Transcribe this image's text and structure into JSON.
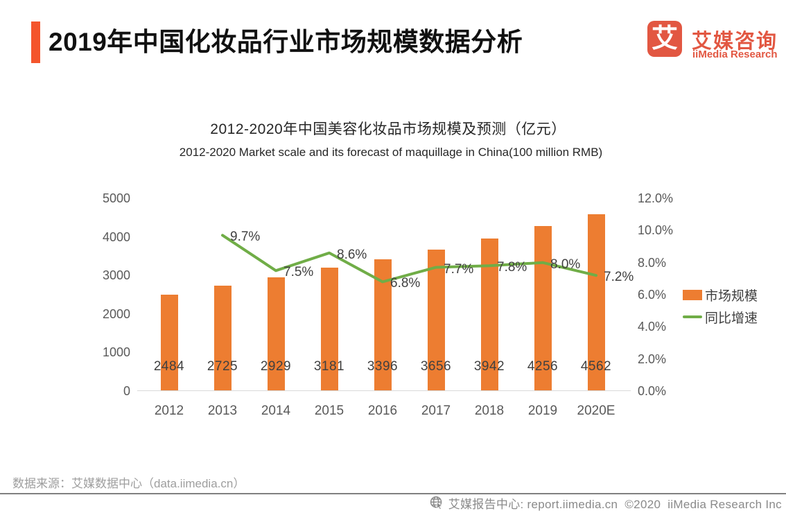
{
  "header": {
    "title": "2019年中国化妆品行业市场规模数据分析",
    "logo": {
      "mark_glyph": "艾",
      "name_cn": "艾媒咨询",
      "name_en": "iiMedia Research",
      "brand_color": "#e25742"
    }
  },
  "chart": {
    "title": "2012-2020年中国美容化妆品市场规模及预测（亿元）",
    "subtitle": "2012-2020 Market scale and its forecast of maquillage in China(100 million RMB)",
    "legend": [
      {
        "label": "市场规模",
        "type": "bar",
        "color": "#ED7D31"
      },
      {
        "label": "同比增速",
        "type": "line",
        "color": "#70AD47"
      }
    ]
  },
  "chart_data": {
    "type": "bar",
    "title": "2012-2020年中国美容化妆品市场规模及预测（亿元）",
    "subtitle": "2012-2020 Market scale and its forecast of maquillage in China(100 million RMB)",
    "categories": [
      "2012",
      "2013",
      "2014",
      "2015",
      "2016",
      "2017",
      "2018",
      "2019",
      "2020E"
    ],
    "series": [
      {
        "name": "市场规模",
        "type": "bar",
        "axis": "left",
        "unit": "亿元",
        "color": "#ED7D31",
        "values": [
          2484,
          2725,
          2929,
          3181,
          3396,
          3656,
          3942,
          4256,
          4562
        ]
      },
      {
        "name": "同比增速",
        "type": "line",
        "axis": "right",
        "unit": "%",
        "color": "#70AD47",
        "values": [
          null,
          9.7,
          7.5,
          8.6,
          6.8,
          7.7,
          7.8,
          8.0,
          7.2
        ],
        "display": [
          null,
          "9.7%",
          "7.5%",
          "8.6%",
          "6.8%",
          "7.7%",
          "7.8%",
          "8.0%",
          "7.2%"
        ]
      }
    ],
    "left_axis": {
      "ticks": [
        0,
        1000,
        2000,
        3000,
        4000,
        5000
      ],
      "range": [
        0,
        5000
      ]
    },
    "right_axis": {
      "labels": [
        "0.0%",
        "2.0%",
        "4.0%",
        "6.0%",
        "8.0%",
        "10.0%",
        "12.0%"
      ],
      "values": [
        0,
        2,
        4,
        6,
        8,
        10,
        12
      ],
      "range": [
        0,
        12
      ]
    },
    "grid": false,
    "legend_position": "right"
  },
  "footer": {
    "source": "数据来源：艾媒数据中心（data.iimedia.cn）"
  },
  "bottom_bar": {
    "text": "艾媒报告中心: report.iimedia.cn  ©2020  iiMedia Research Inc"
  }
}
